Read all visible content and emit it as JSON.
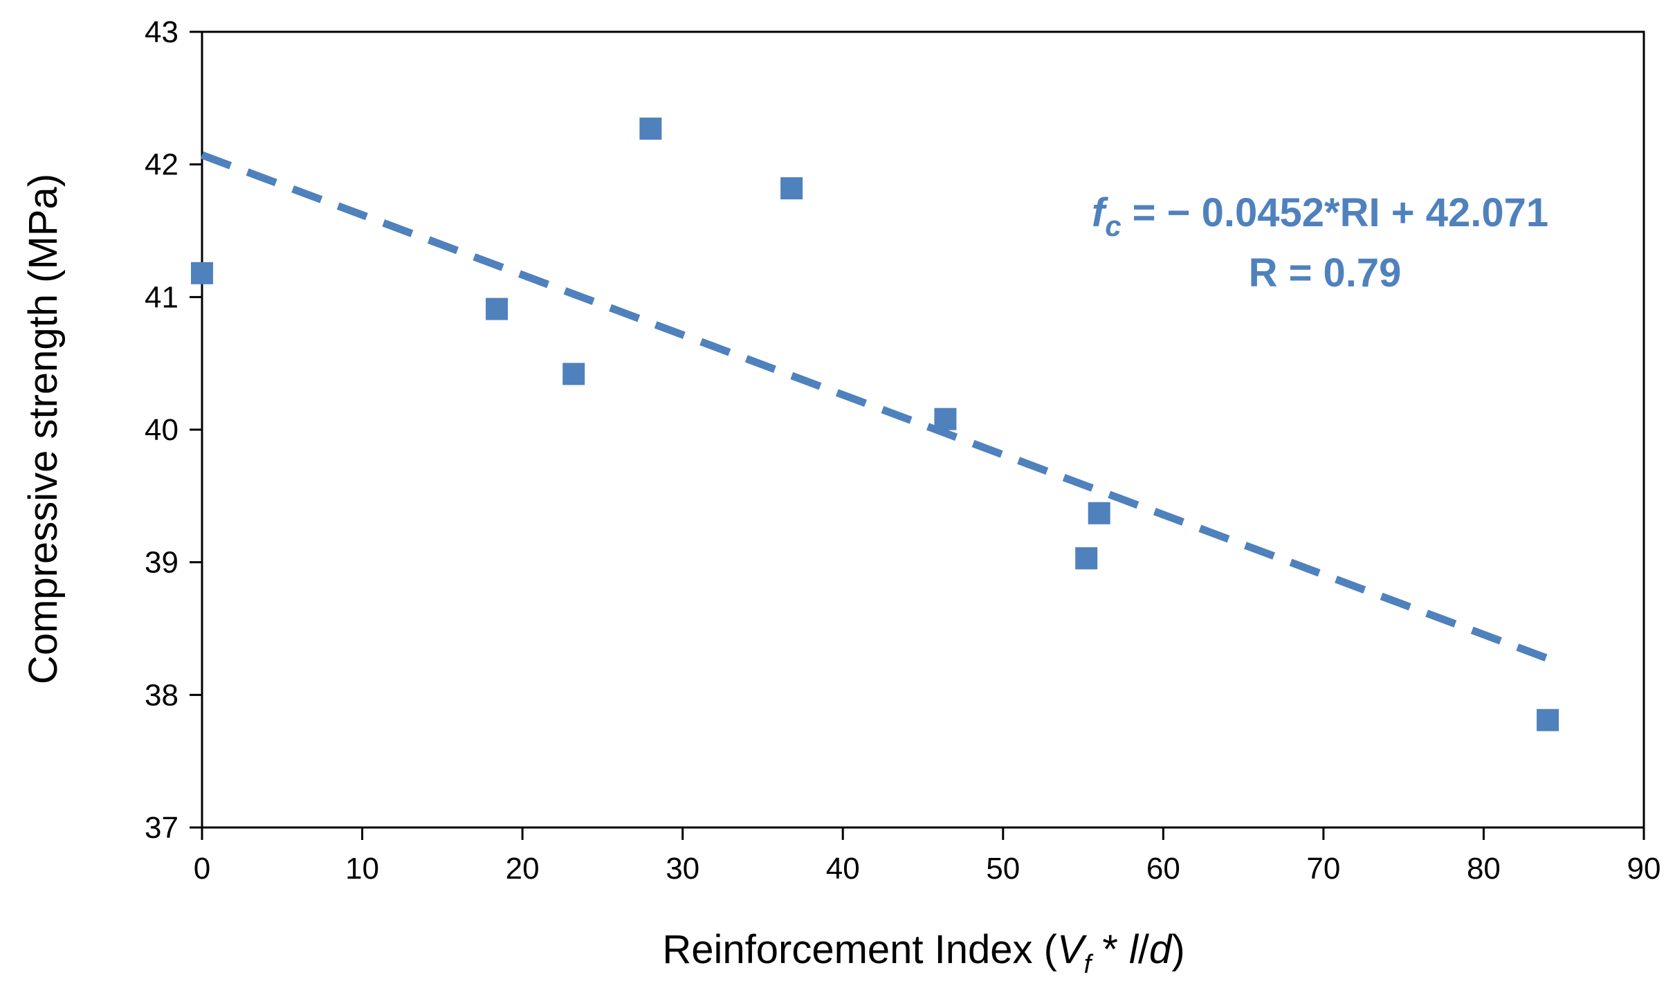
{
  "chart_data": {
    "type": "scatter",
    "title": "",
    "xlabel": {
      "prefix": "Reinforcement Index (",
      "v": "V",
      "f": "f",
      "mid": " * ",
      "l": "l",
      "slash": "/",
      "d": "d",
      "suffix": ")"
    },
    "ylabel": "Compressive strength (MPa)",
    "xlim": [
      0,
      90
    ],
    "ylim": [
      37,
      43
    ],
    "xticks": [
      0,
      10,
      20,
      30,
      40,
      50,
      60,
      70,
      80,
      90
    ],
    "yticks": [
      37,
      38,
      39,
      40,
      41,
      42,
      43
    ],
    "grid": false,
    "series": [
      {
        "name": "Compressive strength",
        "marker": "square",
        "color": "#4F81BD",
        "x": [
          0,
          18.4,
          23.2,
          28.0,
          36.8,
          46.4,
          55.2,
          56.0,
          84.0
        ],
        "y": [
          41.18,
          40.91,
          40.42,
          42.27,
          41.82,
          40.08,
          39.03,
          39.37,
          37.81
        ]
      }
    ],
    "trendline": {
      "type": "linear",
      "slope": -0.0452,
      "intercept": 42.071,
      "x_range": [
        0,
        84
      ],
      "style": "dashed",
      "color": "#4F81BD"
    },
    "annotation": {
      "color": "#4F81BD",
      "f": "f",
      "c": "c",
      "equation": " = − 0.0452*RI + 42.071",
      "r_text": "R = 0.79"
    }
  }
}
